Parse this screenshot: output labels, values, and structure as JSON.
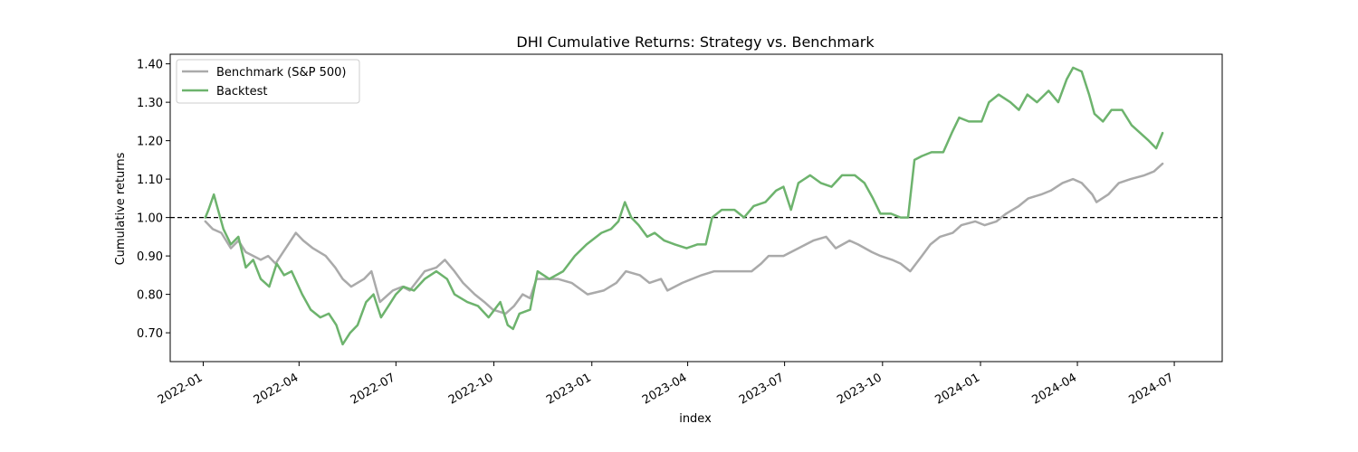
{
  "chart_data": {
    "type": "line",
    "title": "DHI Cumulative Returns: Strategy vs. Benchmark",
    "xlabel": "index",
    "ylabel": "Cumulative returns",
    "xlim": [
      "2021-12-01",
      "2024-08-15"
    ],
    "ylim": [
      0.625,
      1.425
    ],
    "x_ticks": [
      "2022-01",
      "2022-04",
      "2022-07",
      "2022-10",
      "2023-01",
      "2023-04",
      "2023-07",
      "2023-10",
      "2024-01",
      "2024-04",
      "2024-07"
    ],
    "y_ticks": [
      0.7,
      0.8,
      0.9,
      1.0,
      1.1,
      1.2,
      1.3,
      1.4
    ],
    "reference_line": {
      "y": 1.0,
      "style": "dashed",
      "color": "#000000"
    },
    "legend_position": "upper-left",
    "series": [
      {
        "name": "Benchmark (S&P 500)",
        "color": "#aaaaaa",
        "points": [
          [
            "2022-01-03",
            0.99
          ],
          [
            "2022-01-10",
            0.97
          ],
          [
            "2022-01-18",
            0.96
          ],
          [
            "2022-01-27",
            0.92
          ],
          [
            "2022-02-03",
            0.94
          ],
          [
            "2022-02-10",
            0.91
          ],
          [
            "2022-02-24",
            0.89
          ],
          [
            "2022-03-03",
            0.9
          ],
          [
            "2022-03-10",
            0.88
          ],
          [
            "2022-03-17",
            0.91
          ],
          [
            "2022-03-29",
            0.96
          ],
          [
            "2022-04-05",
            0.94
          ],
          [
            "2022-04-14",
            0.92
          ],
          [
            "2022-04-26",
            0.9
          ],
          [
            "2022-05-05",
            0.87
          ],
          [
            "2022-05-12",
            0.84
          ],
          [
            "2022-05-20",
            0.82
          ],
          [
            "2022-06-01",
            0.84
          ],
          [
            "2022-06-08",
            0.86
          ],
          [
            "2022-06-16",
            0.78
          ],
          [
            "2022-06-28",
            0.81
          ],
          [
            "2022-07-07",
            0.82
          ],
          [
            "2022-07-14",
            0.81
          ],
          [
            "2022-07-28",
            0.86
          ],
          [
            "2022-08-08",
            0.87
          ],
          [
            "2022-08-16",
            0.89
          ],
          [
            "2022-08-25",
            0.86
          ],
          [
            "2022-09-02",
            0.83
          ],
          [
            "2022-09-13",
            0.8
          ],
          [
            "2022-09-22",
            0.78
          ],
          [
            "2022-09-30",
            0.76
          ],
          [
            "2022-10-12",
            0.75
          ],
          [
            "2022-10-20",
            0.77
          ],
          [
            "2022-10-28",
            0.8
          ],
          [
            "2022-11-04",
            0.79
          ],
          [
            "2022-11-10",
            0.84
          ],
          [
            "2022-11-30",
            0.84
          ],
          [
            "2022-12-13",
            0.83
          ],
          [
            "2022-12-28",
            0.8
          ],
          [
            "2023-01-12",
            0.81
          ],
          [
            "2023-01-24",
            0.83
          ],
          [
            "2023-02-02",
            0.86
          ],
          [
            "2023-02-15",
            0.85
          ],
          [
            "2023-02-24",
            0.83
          ],
          [
            "2023-03-07",
            0.84
          ],
          [
            "2023-03-13",
            0.81
          ],
          [
            "2023-03-27",
            0.83
          ],
          [
            "2023-04-05",
            0.84
          ],
          [
            "2023-04-14",
            0.85
          ],
          [
            "2023-04-26",
            0.86
          ],
          [
            "2023-05-05",
            0.86
          ],
          [
            "2023-05-19",
            0.86
          ],
          [
            "2023-05-31",
            0.86
          ],
          [
            "2023-06-09",
            0.88
          ],
          [
            "2023-06-16",
            0.9
          ],
          [
            "2023-06-30",
            0.9
          ],
          [
            "2023-07-14",
            0.92
          ],
          [
            "2023-07-28",
            0.94
          ],
          [
            "2023-08-09",
            0.95
          ],
          [
            "2023-08-18",
            0.92
          ],
          [
            "2023-08-31",
            0.94
          ],
          [
            "2023-09-08",
            0.93
          ],
          [
            "2023-09-21",
            0.91
          ],
          [
            "2023-09-29",
            0.9
          ],
          [
            "2023-10-10",
            0.89
          ],
          [
            "2023-10-18",
            0.88
          ],
          [
            "2023-10-27",
            0.86
          ],
          [
            "2023-11-07",
            0.9
          ],
          [
            "2023-11-15",
            0.93
          ],
          [
            "2023-11-24",
            0.95
          ],
          [
            "2023-12-06",
            0.96
          ],
          [
            "2023-12-14",
            0.98
          ],
          [
            "2023-12-27",
            0.99
          ],
          [
            "2024-01-05",
            0.98
          ],
          [
            "2024-01-16",
            0.99
          ],
          [
            "2024-01-25",
            1.01
          ],
          [
            "2024-02-06",
            1.03
          ],
          [
            "2024-02-15",
            1.05
          ],
          [
            "2024-02-27",
            1.06
          ],
          [
            "2024-03-07",
            1.07
          ],
          [
            "2024-03-18",
            1.09
          ],
          [
            "2024-03-28",
            1.1
          ],
          [
            "2024-04-05",
            1.09
          ],
          [
            "2024-04-15",
            1.06
          ],
          [
            "2024-04-19",
            1.04
          ],
          [
            "2024-04-30",
            1.06
          ],
          [
            "2024-05-10",
            1.09
          ],
          [
            "2024-05-21",
            1.1
          ],
          [
            "2024-06-03",
            1.11
          ],
          [
            "2024-06-12",
            1.12
          ],
          [
            "2024-06-20",
            1.14
          ]
        ]
      },
      {
        "name": "Backtest",
        "color": "#6db36d",
        "points": [
          [
            "2022-01-03",
            1.0
          ],
          [
            "2022-01-06",
            1.02
          ],
          [
            "2022-01-11",
            1.06
          ],
          [
            "2022-01-14",
            1.03
          ],
          [
            "2022-01-20",
            0.97
          ],
          [
            "2022-01-27",
            0.93
          ],
          [
            "2022-02-03",
            0.95
          ],
          [
            "2022-02-10",
            0.87
          ],
          [
            "2022-02-17",
            0.89
          ],
          [
            "2022-02-24",
            0.84
          ],
          [
            "2022-03-04",
            0.82
          ],
          [
            "2022-03-11",
            0.88
          ],
          [
            "2022-03-18",
            0.85
          ],
          [
            "2022-03-25",
            0.86
          ],
          [
            "2022-04-04",
            0.8
          ],
          [
            "2022-04-12",
            0.76
          ],
          [
            "2022-04-21",
            0.74
          ],
          [
            "2022-04-29",
            0.75
          ],
          [
            "2022-05-06",
            0.72
          ],
          [
            "2022-05-12",
            0.67
          ],
          [
            "2022-05-19",
            0.7
          ],
          [
            "2022-05-26",
            0.72
          ],
          [
            "2022-06-03",
            0.78
          ],
          [
            "2022-06-10",
            0.8
          ],
          [
            "2022-06-17",
            0.74
          ],
          [
            "2022-06-24",
            0.77
          ],
          [
            "2022-07-01",
            0.8
          ],
          [
            "2022-07-08",
            0.82
          ],
          [
            "2022-07-18",
            0.81
          ],
          [
            "2022-07-28",
            0.84
          ],
          [
            "2022-08-08",
            0.86
          ],
          [
            "2022-08-18",
            0.84
          ],
          [
            "2022-08-25",
            0.8
          ],
          [
            "2022-09-06",
            0.78
          ],
          [
            "2022-09-16",
            0.77
          ],
          [
            "2022-09-26",
            0.74
          ],
          [
            "2022-10-07",
            0.78
          ],
          [
            "2022-10-14",
            0.72
          ],
          [
            "2022-10-19",
            0.71
          ],
          [
            "2022-10-25",
            0.75
          ],
          [
            "2022-11-04",
            0.76
          ],
          [
            "2022-11-11",
            0.86
          ],
          [
            "2022-11-22",
            0.84
          ],
          [
            "2022-12-05",
            0.86
          ],
          [
            "2022-12-16",
            0.9
          ],
          [
            "2022-12-27",
            0.93
          ],
          [
            "2023-01-10",
            0.96
          ],
          [
            "2023-01-19",
            0.97
          ],
          [
            "2023-01-26",
            0.99
          ],
          [
            "2023-02-01",
            1.04
          ],
          [
            "2023-02-07",
            1.0
          ],
          [
            "2023-02-14",
            0.98
          ],
          [
            "2023-02-22",
            0.95
          ],
          [
            "2023-03-01",
            0.96
          ],
          [
            "2023-03-10",
            0.94
          ],
          [
            "2023-03-20",
            0.93
          ],
          [
            "2023-03-31",
            0.92
          ],
          [
            "2023-04-10",
            0.93
          ],
          [
            "2023-04-18",
            0.93
          ],
          [
            "2023-04-24",
            1.0
          ],
          [
            "2023-05-03",
            1.02
          ],
          [
            "2023-05-15",
            1.02
          ],
          [
            "2023-05-24",
            1.0
          ],
          [
            "2023-06-02",
            1.03
          ],
          [
            "2023-06-13",
            1.04
          ],
          [
            "2023-06-23",
            1.07
          ],
          [
            "2023-06-30",
            1.08
          ],
          [
            "2023-07-07",
            1.02
          ],
          [
            "2023-07-14",
            1.09
          ],
          [
            "2023-07-25",
            1.11
          ],
          [
            "2023-08-04",
            1.09
          ],
          [
            "2023-08-14",
            1.08
          ],
          [
            "2023-08-24",
            1.11
          ],
          [
            "2023-09-05",
            1.11
          ],
          [
            "2023-09-14",
            1.09
          ],
          [
            "2023-09-22",
            1.05
          ],
          [
            "2023-09-29",
            1.01
          ],
          [
            "2023-10-09",
            1.01
          ],
          [
            "2023-10-18",
            1.0
          ],
          [
            "2023-10-25",
            1.0
          ],
          [
            "2023-10-31",
            1.15
          ],
          [
            "2023-11-07",
            1.16
          ],
          [
            "2023-11-16",
            1.17
          ],
          [
            "2023-11-27",
            1.17
          ],
          [
            "2023-12-05",
            1.22
          ],
          [
            "2023-12-12",
            1.26
          ],
          [
            "2023-12-21",
            1.25
          ],
          [
            "2024-01-02",
            1.25
          ],
          [
            "2024-01-09",
            1.3
          ],
          [
            "2024-01-18",
            1.32
          ],
          [
            "2024-01-29",
            1.3
          ],
          [
            "2024-02-06",
            1.28
          ],
          [
            "2024-02-14",
            1.32
          ],
          [
            "2024-02-23",
            1.3
          ],
          [
            "2024-03-05",
            1.33
          ],
          [
            "2024-03-14",
            1.3
          ],
          [
            "2024-03-22",
            1.36
          ],
          [
            "2024-03-28",
            1.39
          ],
          [
            "2024-04-05",
            1.38
          ],
          [
            "2024-04-12",
            1.32
          ],
          [
            "2024-04-17",
            1.27
          ],
          [
            "2024-04-25",
            1.25
          ],
          [
            "2024-05-03",
            1.28
          ],
          [
            "2024-05-13",
            1.28
          ],
          [
            "2024-05-22",
            1.24
          ],
          [
            "2024-05-30",
            1.22
          ],
          [
            "2024-06-07",
            1.2
          ],
          [
            "2024-06-14",
            1.18
          ],
          [
            "2024-06-20",
            1.22
          ]
        ]
      }
    ]
  }
}
